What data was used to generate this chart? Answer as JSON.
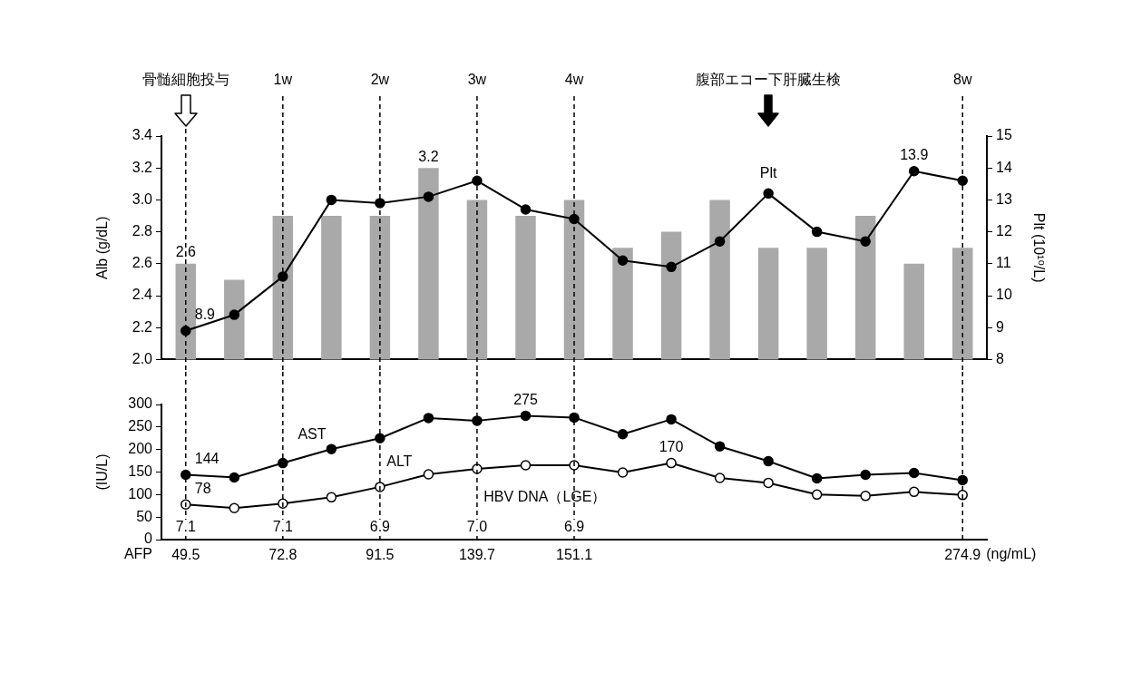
{
  "chart_data": [
    {
      "type": "bar",
      "categories": [
        "骨髄細胞投与",
        null,
        "1w",
        null,
        "2w",
        null,
        "3w",
        null,
        "4w",
        null,
        null,
        null,
        "腹部エコー下肝臓生検",
        null,
        null,
        null,
        "8w"
      ],
      "ylabel": "Alb (g/dL)",
      "y2label": "Plt (10¹⁰/L)",
      "ylim": [
        2.0,
        3.4
      ],
      "yticks": [
        {
          "value": 2.0,
          "label": "2.0"
        },
        {
          "value": 2.2,
          "label": "2.2"
        },
        {
          "value": 2.4,
          "label": "2.4"
        },
        {
          "value": 2.6,
          "label": "2.6"
        },
        {
          "value": 2.8,
          "label": "2.8"
        },
        {
          "value": 3.0,
          "label": "3.0"
        },
        {
          "value": 3.2,
          "label": "3.2"
        },
        {
          "value": 3.4,
          "label": "3.4"
        }
      ],
      "y2lim": [
        8,
        15
      ],
      "y2ticks": [
        8,
        9,
        10,
        11,
        12,
        13,
        14,
        15
      ],
      "series": [
        {
          "type": "bar",
          "color": "#a9a9a9",
          "values": [
            2.6,
            2.5,
            2.9,
            2.9,
            2.9,
            3.2,
            3.0,
            2.9,
            3.0,
            2.7,
            2.8,
            3.0,
            2.7,
            2.7,
            2.9,
            2.6,
            2.7
          ],
          "value_labels": [
            "2.6",
            null,
            null,
            null,
            null,
            "3.2",
            null,
            null,
            null,
            null,
            null,
            null,
            null,
            null,
            null,
            null,
            null
          ]
        },
        {
          "type": "line",
          "name": "Plt",
          "axis": "y2",
          "color": "#000000",
          "marker": "circle",
          "values": [
            8.9,
            9.4,
            10.6,
            13.0,
            12.9,
            13.1,
            13.6,
            12.7,
            12.4,
            11.1,
            10.9,
            11.7,
            13.2,
            12.0,
            11.7,
            13.9,
            13.6
          ],
          "value_labels": [
            "8.9",
            null,
            null,
            null,
            null,
            null,
            null,
            null,
            null,
            null,
            null,
            null,
            null,
            null,
            null,
            "13.9",
            null
          ]
        }
      ],
      "ref_lines": [
        {
          "axis": "x",
          "value": "骨髄細胞投与",
          "line_style": "dashed"
        },
        {
          "axis": "x",
          "value": "1w",
          "line_style": "dashed"
        },
        {
          "axis": "x",
          "value": "2w",
          "line_style": "dashed"
        },
        {
          "axis": "x",
          "value": "3w",
          "line_style": "dashed"
        },
        {
          "axis": "x",
          "value": "4w",
          "line_style": "dashed"
        },
        {
          "axis": "x",
          "value": "8w",
          "line_style": "dashed"
        }
      ],
      "grid": false,
      "legend": false
    },
    {
      "type": "line",
      "categories": [
        "49.5",
        null,
        "72.8",
        null,
        "91.5",
        null,
        "139.7",
        null,
        "151.1",
        null,
        null,
        null,
        null,
        null,
        null,
        null,
        "274.9"
      ],
      "xlabel": "AFP",
      "ylabel": "(IU/L)",
      "ylim": [
        0,
        300
      ],
      "yticks": [
        0,
        50,
        100,
        150,
        200,
        250,
        300
      ],
      "series": [
        {
          "name": "AST",
          "color": "#000000",
          "marker": "circle",
          "values": [
            144,
            138,
            170,
            201,
            225,
            270,
            264,
            275,
            271,
            234,
            267,
            207,
            174,
            136,
            144,
            148,
            132
          ],
          "value_labels": [
            "144",
            null,
            null,
            null,
            null,
            null,
            null,
            "275",
            null,
            null,
            null,
            null,
            null,
            null,
            null,
            null,
            null
          ]
        },
        {
          "name": "ALT",
          "color": "#000000",
          "marker": "circle",
          "values": [
            78,
            70,
            80,
            94,
            117,
            145,
            157,
            165,
            165,
            149,
            170,
            137,
            126,
            100,
            97,
            106,
            99
          ],
          "value_labels": [
            "78",
            null,
            null,
            null,
            null,
            null,
            null,
            null,
            null,
            null,
            "170",
            null,
            null,
            null,
            null,
            null,
            null
          ]
        }
      ],
      "annotations": [
        {
          "text": "7.1",
          "x": "49.5"
        },
        {
          "text": "7.1",
          "x": "72.8"
        },
        {
          "text": "6.9",
          "x": "91.5"
        },
        {
          "text": "7.0",
          "x": "139.7"
        },
        {
          "text": "6.9",
          "x": "151.1"
        },
        "HBV DNA（LGE）",
        "(ng/mL)"
      ],
      "ref_lines": [
        {
          "axis": "x",
          "value": "49.5",
          "line_style": "dashed"
        },
        {
          "axis": "x",
          "value": "72.8",
          "line_style": "dashed"
        },
        {
          "axis": "x",
          "value": "91.5",
          "line_style": "dashed"
        },
        {
          "axis": "x",
          "value": "139.7",
          "line_style": "dashed"
        },
        {
          "axis": "x",
          "value": "151.1",
          "line_style": "dashed"
        },
        {
          "axis": "x",
          "value": "274.9",
          "line_style": "dashed"
        }
      ],
      "grid": false,
      "legend": false
    }
  ]
}
